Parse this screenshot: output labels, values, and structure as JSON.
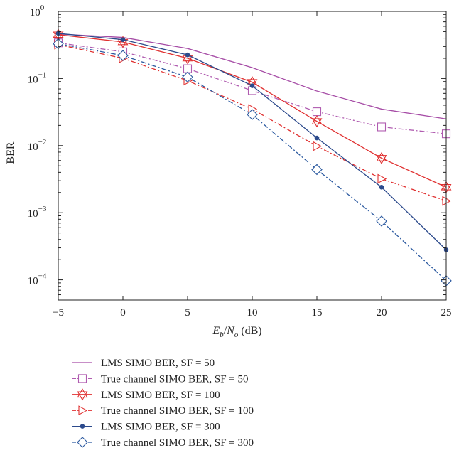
{
  "chart_data": {
    "type": "line",
    "title": "",
    "xlabel": "E_b/N_o (dB)",
    "xlabel_parts": {
      "E": "E",
      "b": "b",
      "slash": "/",
      "N": "N",
      "o": "o",
      "unit": " (dB)"
    },
    "ylabel": "BER",
    "xlim": [
      -5,
      25
    ],
    "ylim": [
      5e-05,
      1
    ],
    "yscale": "log",
    "grid": false,
    "legend_placement": "below",
    "x_ticks": [
      {
        "value": -5,
        "label": "−5"
      },
      {
        "value": 0,
        "label": "0"
      },
      {
        "value": 5,
        "label": "5"
      },
      {
        "value": 10,
        "label": "10"
      },
      {
        "value": 15,
        "label": "15"
      },
      {
        "value": 20,
        "label": "20"
      },
      {
        "value": 25,
        "label": "25"
      }
    ],
    "y_ticks": [
      {
        "value": 1,
        "base": "10",
        "exp": "0"
      },
      {
        "value": 0.1,
        "base": "10",
        "exp": "−1"
      },
      {
        "value": 0.01,
        "base": "10",
        "exp": "−2"
      },
      {
        "value": 0.001,
        "base": "10",
        "exp": "−3"
      },
      {
        "value": 0.0001,
        "base": "10",
        "exp": "−4"
      }
    ],
    "series": [
      {
        "name": "LMS SIMO BER, SF = 50",
        "color": "#a64ca6",
        "dash": "solid",
        "marker": "none",
        "x": [
          -5,
          0,
          5,
          10,
          15,
          20,
          25
        ],
        "y": [
          0.46,
          0.41,
          0.28,
          0.145,
          0.065,
          0.035,
          0.025
        ]
      },
      {
        "name": "True channel SIMO BER, SF = 50",
        "color": "#b05cb0",
        "dash": "dashdot",
        "marker": "square",
        "x": [
          -5,
          0,
          5,
          10,
          15,
          20,
          25
        ],
        "y": [
          0.34,
          0.25,
          0.14,
          0.066,
          0.032,
          0.019,
          0.015
        ]
      },
      {
        "name": "LMS SIMO BER, SF = 100",
        "color": "#e03030",
        "dash": "solid",
        "marker": "hexagram",
        "x": [
          -5,
          0,
          5,
          10,
          15,
          20,
          25
        ],
        "y": [
          0.45,
          0.35,
          0.2,
          0.088,
          0.023,
          0.0065,
          0.0024
        ]
      },
      {
        "name": "True channel SIMO BER, SF = 100",
        "color": "#e03030",
        "dash": "dashdot",
        "marker": "triangle-right",
        "x": [
          -5,
          0,
          5,
          10,
          15,
          20,
          25
        ],
        "y": [
          0.32,
          0.2,
          0.093,
          0.035,
          0.0098,
          0.0032,
          0.0015
        ]
      },
      {
        "name": "LMS SIMO BER, SF = 300",
        "color": "#2c4a8c",
        "dash": "solid",
        "marker": "dot",
        "x": [
          -5,
          0,
          5,
          10,
          15,
          20,
          25
        ],
        "y": [
          0.47,
          0.38,
          0.225,
          0.078,
          0.013,
          0.0024,
          0.00028
        ]
      },
      {
        "name": "True channel SIMO BER, SF = 300",
        "color": "#2c5aa0",
        "dash": "dashdot",
        "marker": "diamond",
        "x": [
          -5,
          0,
          5,
          10,
          15,
          20,
          25
        ],
        "y": [
          0.33,
          0.22,
          0.105,
          0.029,
          0.0044,
          0.00075,
          9.7e-05
        ]
      }
    ]
  }
}
